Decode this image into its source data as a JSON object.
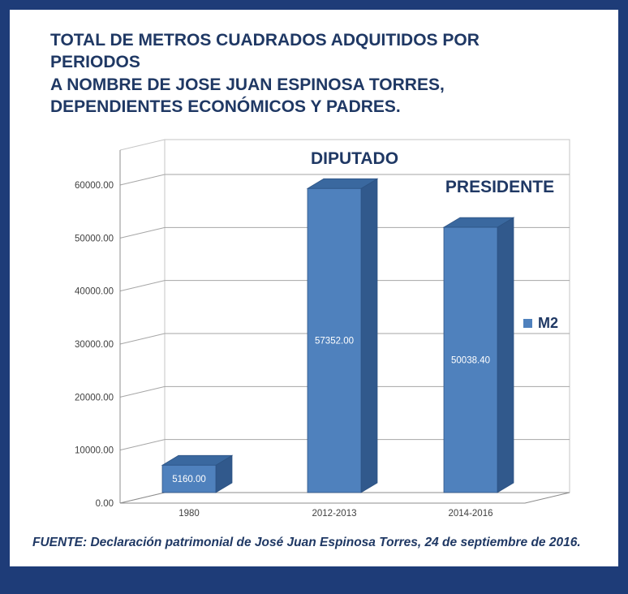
{
  "title": "TOTAL DE METROS CUADRADOS ADQUITIDOS POR\nPERIODOS\nA NOMBRE DE JOSE JUAN ESPINOSA TORRES,\nDEPENDIENTES ECONÓMICOS Y PADRES.",
  "footer": "FUENTE: Declaración patrimonial de José Juan Espinosa Torres, 24 de septiembre de 2016.",
  "colors": {
    "navy": "#1F3864",
    "frame_border": "#1E3C78"
  },
  "chart_data": {
    "type": "bar",
    "style": "3d-column",
    "categories": [
      "1980",
      "2012-2013",
      "2014-2016"
    ],
    "series": [
      {
        "name": "M2",
        "values": [
          5160.0,
          57352.0,
          50038.4
        ]
      }
    ],
    "value_labels": [
      "5160.00",
      "57352.00",
      "50038.40"
    ],
    "annotations": [
      {
        "text": "DIPUTADO",
        "category": "2012-2013"
      },
      {
        "text": "PRESIDENTE",
        "category": "2014-2016"
      }
    ],
    "y_axis": {
      "min": 0,
      "max": 60000,
      "step": 10000,
      "ticks": [
        "0.00",
        "10000.00",
        "20000.00",
        "30000.00",
        "40000.00",
        "50000.00",
        "60000.00"
      ]
    },
    "x_axis": {
      "labels": [
        "1980",
        "2012-2013",
        "2014-2016"
      ]
    },
    "legend": {
      "label": "M2",
      "position": "right"
    },
    "grid": true,
    "colors": {
      "bar_front": "#4F81BD",
      "bar_top": "#3A689F",
      "bar_side": "#31598C",
      "bar_edge": "#2C5282",
      "gridline": "#A6A6A6",
      "axis_line": "#8C8C8C",
      "axis_text": "#404040",
      "wall_border": "#C6C6C6"
    }
  }
}
